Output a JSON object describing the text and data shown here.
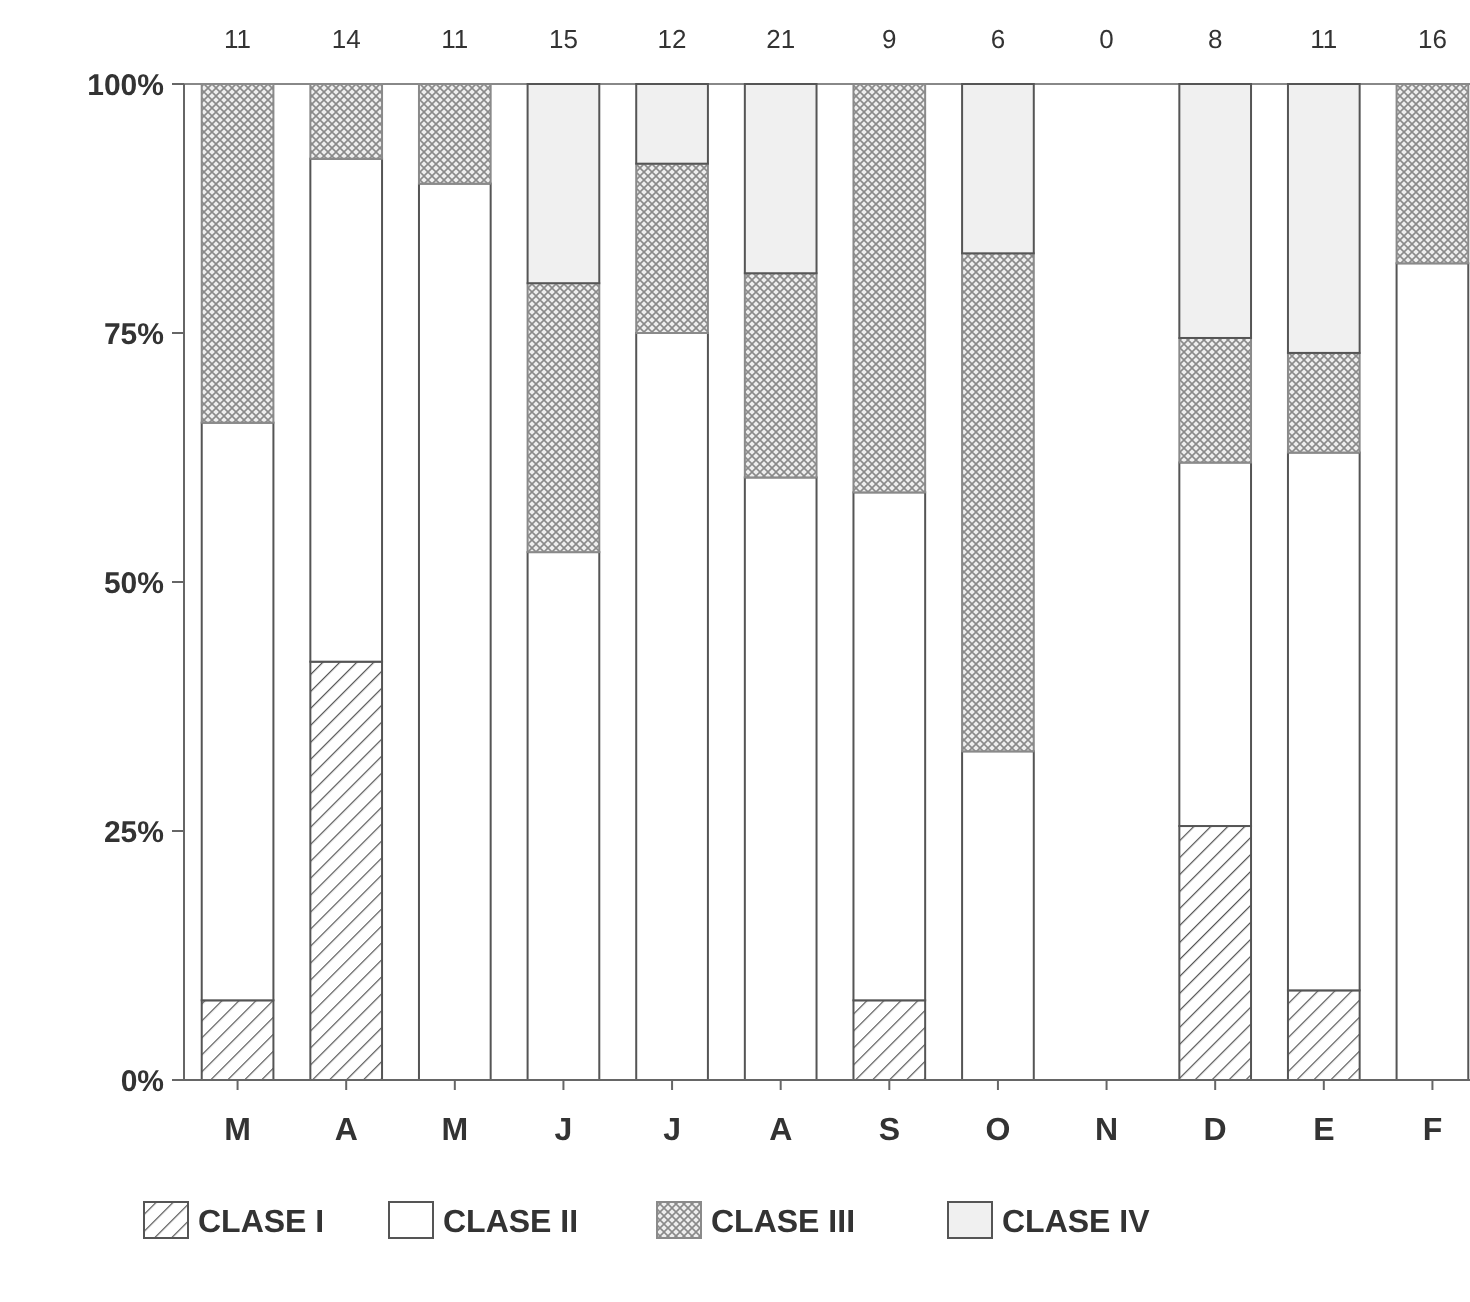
{
  "chart_data": {
    "type": "bar",
    "stacked": true,
    "categories": [
      "M",
      "A",
      "M",
      "J",
      "J",
      "A",
      "S",
      "O",
      "N",
      "D",
      "E",
      "F"
    ],
    "series": [
      {
        "name": "CLASE I",
        "color": "#555555",
        "values": [
          8,
          42,
          0,
          0,
          0,
          0,
          8,
          0,
          0,
          25.5,
          9,
          0
        ]
      },
      {
        "name": "CLASE II",
        "color": "#ffffff",
        "values": [
          58,
          50.5,
          90,
          53,
          75,
          60.5,
          51,
          33,
          0,
          36.5,
          54,
          82
        ]
      },
      {
        "name": "CLASE III",
        "color": "#8a8a8a",
        "values": [
          34,
          7.5,
          10,
          27,
          17,
          20.5,
          41,
          50,
          0,
          12.5,
          10,
          18
        ]
      },
      {
        "name": "CLASE IV",
        "color": "#f0f0f0",
        "values": [
          0,
          0,
          0,
          20,
          8,
          19,
          0,
          17,
          0,
          25.5,
          27,
          0
        ]
      }
    ],
    "ylim": [
      0,
      100
    ],
    "yticks": [
      {
        "value": 0,
        "label": "0%"
      },
      {
        "value": 25,
        "label": "25%"
      },
      {
        "value": 50,
        "label": "50%"
      },
      {
        "value": 75,
        "label": "75%"
      },
      {
        "value": 100,
        "label": "100%"
      }
    ],
    "annotations": [
      "11",
      "14",
      "11",
      "15",
      "12",
      "21",
      "9",
      "6",
      "0",
      "8",
      "11",
      "16"
    ],
    "legend": "bottom"
  }
}
